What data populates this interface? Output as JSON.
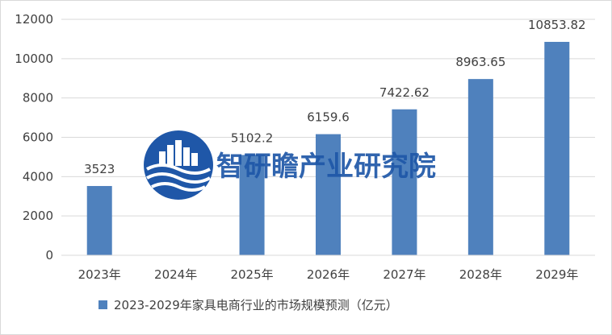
{
  "chart_data": {
    "type": "bar",
    "categories": [
      "2023年",
      "2024年",
      "2025年",
      "2026年",
      "2027年",
      "2028年",
      "2029年"
    ],
    "series": [
      {
        "name": "2023-2029年家具电商行业的市场规模预测（亿元）",
        "values": [
          3523,
          0,
          5102.2,
          6159.6,
          7422.62,
          8963.65,
          10853.82
        ],
        "labels": [
          "3523",
          "",
          "5102.2",
          "6159.6",
          "7422.62",
          "8963.65",
          "10853.82"
        ]
      }
    ],
    "ylim": [
      0,
      12000
    ],
    "yticks": [
      "0",
      "2000",
      "4000",
      "6000",
      "8000",
      "10000",
      "12000"
    ],
    "grid": true,
    "legend_position": "bottom",
    "bar_color": "#4f81bd",
    "grid_color": "#d9d9d9"
  },
  "watermark": {
    "text": "智研瞻产业研究院",
    "color": "#1f57a8"
  }
}
